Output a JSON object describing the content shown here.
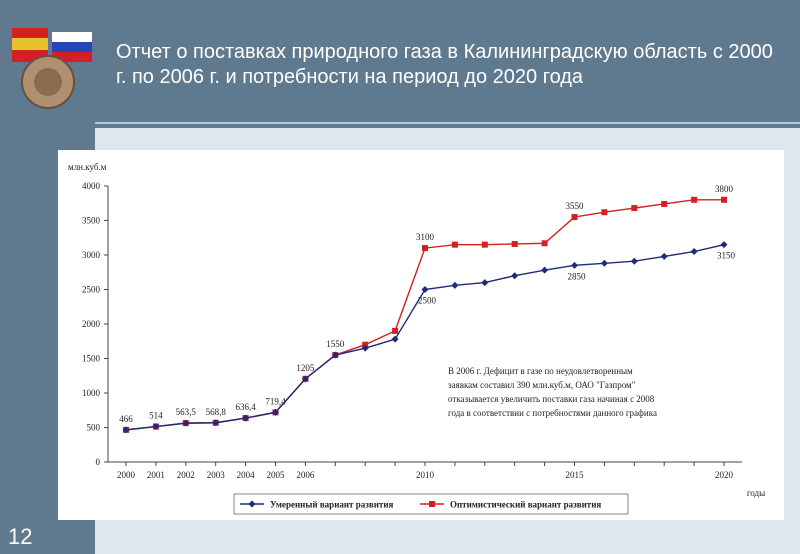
{
  "slide": {
    "title": "Отчет о поставках природного газа в Калининградскую область с 2000 г. по 2006 г. и потребности на период до 2020 года",
    "page_number": "12"
  },
  "chart_data": {
    "type": "line",
    "ylabel": "млн.куб.м",
    "xlabel": "годы",
    "ylim": [
      0,
      4000
    ],
    "yticks": [
      0,
      500,
      1000,
      1500,
      2000,
      2500,
      3000,
      3500,
      4000
    ],
    "ytick_labels": [
      "0",
      "500",
      "1000",
      "1500",
      "2000",
      "2500",
      "3000",
      "3500",
      "4000"
    ],
    "xtick_labels": [
      {
        "year": 2000,
        "label": "2000"
      },
      {
        "year": 2001,
        "label": "2001"
      },
      {
        "year": 2002,
        "label": "2002"
      },
      {
        "year": 2003,
        "label": "2003"
      },
      {
        "year": 2004,
        "label": "2004"
      },
      {
        "year": 2005,
        "label": "2005"
      },
      {
        "year": 2006,
        "label": "2006"
      },
      {
        "year": 2010,
        "label": "2010"
      },
      {
        "year": 2015,
        "label": "2015"
      },
      {
        "year": 2020,
        "label": "2020"
      }
    ],
    "x": [
      2000,
      2001,
      2002,
      2003,
      2004,
      2005,
      2006,
      2007,
      2008,
      2009,
      2010,
      2011,
      2012,
      2013,
      2014,
      2015,
      2016,
      2017,
      2018,
      2019,
      2020
    ],
    "series": [
      {
        "name": "Умеренный вариант развития",
        "color": "#1f2a7a",
        "marker": "diamond",
        "values": [
          466,
          514,
          563.5,
          568.8,
          636.4,
          719.4,
          1205,
          1550,
          1650,
          1780,
          2500,
          2560,
          2600,
          2700,
          2780,
          2850,
          2880,
          2910,
          2980,
          3050,
          3150
        ]
      },
      {
        "name": "Оптимистический вариант развития",
        "color": "#d42020",
        "marker": "square",
        "values": [
          466,
          514,
          563.5,
          568.8,
          636.4,
          719.4,
          1205,
          1550,
          1700,
          1900,
          3100,
          3150,
          3150,
          3160,
          3170,
          3550,
          3620,
          3680,
          3740,
          3800,
          3800
        ]
      }
    ],
    "data_labels": [
      {
        "year": 2000,
        "value": 466,
        "text": "466"
      },
      {
        "year": 2001,
        "value": 514,
        "text": "514"
      },
      {
        "year": 2002,
        "value": 563.5,
        "text": "563,5"
      },
      {
        "year": 2003,
        "value": 568.8,
        "text": "568,8"
      },
      {
        "year": 2004,
        "value": 636.4,
        "text": "636,4"
      },
      {
        "year": 2005,
        "value": 719.4,
        "text": "719,4"
      },
      {
        "year": 2006,
        "value": 1205,
        "text": "1205"
      },
      {
        "year": 2007,
        "value": 1550,
        "text": "1550"
      },
      {
        "year": 2010,
        "value": 3100,
        "text": "3100"
      },
      {
        "year": 2010,
        "value": 2500,
        "text": "2500"
      },
      {
        "year": 2015,
        "value": 3550,
        "text": "3550"
      },
      {
        "year": 2015,
        "value": 2850,
        "text": "2850"
      },
      {
        "year": 2020,
        "value": 3800,
        "text": "3800"
      },
      {
        "year": 2020,
        "value": 3150,
        "text": "3150"
      }
    ],
    "annotation": [
      "В 2006 г. Дефицит в газе по неудовлетворенным",
      "заявкам составил 390 млн.куб.м, ОАО \"Газпром\"",
      "отказывается увеличить поставки газа начиная с 2008",
      "года в соответствии с потребностями данного графика"
    ],
    "legend_position": "bottom",
    "grid": false
  }
}
